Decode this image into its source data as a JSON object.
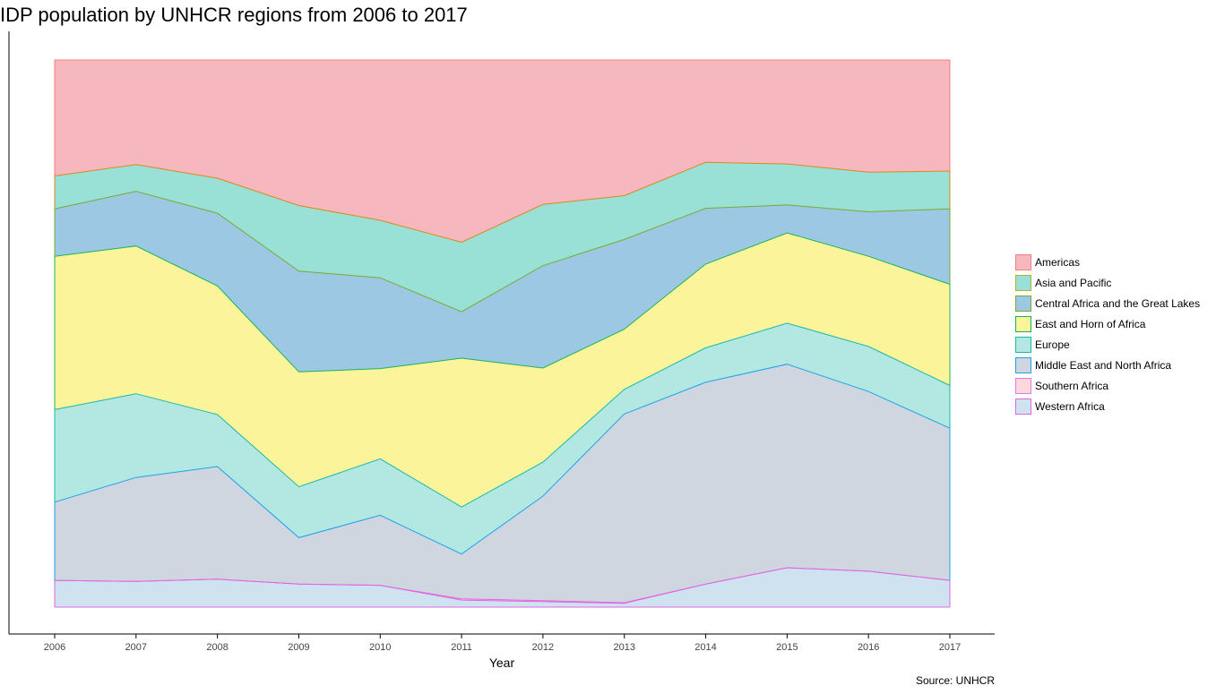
{
  "title": "IDP population by UNHCR regions from 2006 to 2017",
  "caption": "Source: UNHCR",
  "chart_data": {
    "type": "area",
    "stacking": "percent",
    "xlabel": "Year",
    "ylabel": "",
    "x": [
      2006,
      2007,
      2008,
      2009,
      2010,
      2011,
      2012,
      2013,
      2014,
      2015,
      2016,
      2017
    ],
    "xlim": [
      2006,
      2017
    ],
    "ylim": [
      0,
      1
    ],
    "y_axis_ticks": "none",
    "grid": false,
    "legend_position": "right",
    "series": [
      {
        "name": "Western Africa",
        "fill": "#cfe2f0",
        "line": "#e066e0",
        "values": [
          0.049,
          0.047,
          0.051,
          0.042,
          0.04,
          0.013,
          0.01,
          0.007,
          0.042,
          0.072,
          0.067,
          0.049
        ]
      },
      {
        "name": "Southern Africa",
        "fill": "#fbd8df",
        "line": "#e066e0",
        "values": [
          0.0,
          0.0,
          0.0,
          0.0,
          0.0,
          0.002,
          0.002,
          0.001,
          0.0,
          0.0,
          0.0,
          0.0
        ]
      },
      {
        "name": "Middle East and North Africa",
        "fill": "#d0d6df",
        "line": "#1aa3ec",
        "values": [
          0.143,
          0.19,
          0.206,
          0.085,
          0.128,
          0.082,
          0.191,
          0.345,
          0.369,
          0.372,
          0.335,
          0.278
        ]
      },
      {
        "name": "Europe",
        "fill": "#b3e8e2",
        "line": "#1ab8a8",
        "values": [
          0.169,
          0.153,
          0.095,
          0.093,
          0.103,
          0.086,
          0.062,
          0.045,
          0.063,
          0.075,
          0.084,
          0.078
        ]
      },
      {
        "name": "East and Horn of Africa",
        "fill": "#fbf49a",
        "line": "#1ab35c",
        "values": [
          0.28,
          0.27,
          0.235,
          0.21,
          0.165,
          0.272,
          0.172,
          0.11,
          0.153,
          0.165,
          0.168,
          0.185
        ]
      },
      {
        "name": "Central Africa and the Great Lakes",
        "fill": "#9dc8e4",
        "line": "#78ab2e",
        "values": [
          0.087,
          0.1,
          0.133,
          0.184,
          0.166,
          0.085,
          0.187,
          0.164,
          0.102,
          0.051,
          0.083,
          0.138
        ]
      },
      {
        "name": "Asia and Pacific",
        "fill": "#99e0d6",
        "line": "#d98a1a",
        "values": [
          0.06,
          0.049,
          0.064,
          0.12,
          0.105,
          0.127,
          0.112,
          0.08,
          0.084,
          0.075,
          0.074,
          0.069
        ]
      },
      {
        "name": "Americas",
        "fill": "#f7b7be",
        "line": "#f07f7f",
        "values": [
          0.212,
          0.191,
          0.216,
          0.266,
          0.293,
          0.333,
          0.264,
          0.248,
          0.187,
          0.19,
          0.209,
          0.203
        ]
      }
    ],
    "legend_entries": [
      {
        "name": "Americas",
        "fill": "#f7b7be",
        "line": "#f07f7f"
      },
      {
        "name": "Asia and Pacific",
        "fill": "#99e0d6",
        "line": "#b5b02a"
      },
      {
        "name": "Central Africa and the Great Lakes",
        "fill": "#9dc8e4",
        "line": "#78ab2e"
      },
      {
        "name": "East and Horn of Africa",
        "fill": "#fbf49a",
        "line": "#1ab35c"
      },
      {
        "name": "Europe",
        "fill": "#b3e8e2",
        "line": "#1ab8a8"
      },
      {
        "name": "Middle East and North Africa",
        "fill": "#d0d6df",
        "line": "#1aa3ec"
      },
      {
        "name": "Southern Africa",
        "fill": "#fbd8df",
        "line": "#e47ad6"
      },
      {
        "name": "Western Africa",
        "fill": "#cfe2f0",
        "line": "#e066e0"
      }
    ]
  }
}
